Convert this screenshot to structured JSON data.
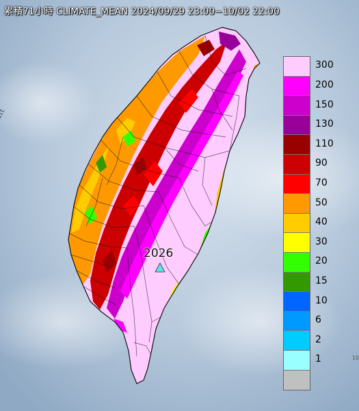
{
  "title": "累積71小時 CLIMATE_MEAN 2024/09/29 23:00~10/02 22:00",
  "strait_label": "Formosa Strait",
  "station": {
    "label": "2026",
    "marker_color": "#5fe3e8"
  },
  "edge_mark": "10",
  "legend": {
    "items": [
      {
        "label": "300",
        "color": "#ffccff"
      },
      {
        "label": "200",
        "color": "#ff00ff"
      },
      {
        "label": "150",
        "color": "#cc00cc"
      },
      {
        "label": "130",
        "color": "#990099"
      },
      {
        "label": "110",
        "color": "#990000"
      },
      {
        "label": "90",
        "color": "#cc0000"
      },
      {
        "label": "70",
        "color": "#ff0000"
      },
      {
        "label": "50",
        "color": "#ff9900"
      },
      {
        "label": "40",
        "color": "#ffcc00"
      },
      {
        "label": "30",
        "color": "#ffff00"
      },
      {
        "label": "20",
        "color": "#33ff00"
      },
      {
        "label": "15",
        "color": "#339900"
      },
      {
        "label": "10",
        "color": "#0066ff"
      },
      {
        "label": "6",
        "color": "#0099ff"
      },
      {
        "label": "2",
        "color": "#00ccff"
      },
      {
        "label": "1",
        "color": "#99ffff"
      },
      {
        "label": "",
        "color": "#c0c0c0"
      }
    ]
  }
}
